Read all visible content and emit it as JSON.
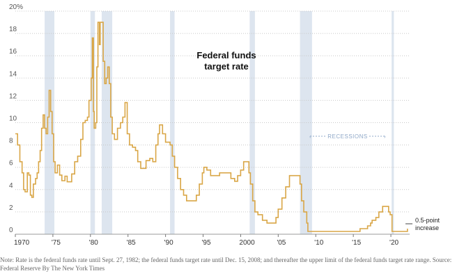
{
  "chart_data": {
    "type": "line",
    "title_lines": [
      "Federal funds",
      "target rate"
    ],
    "xlabel": "",
    "ylabel": "",
    "ylim": [
      0,
      20
    ],
    "xlim": [
      1970,
      2022.5
    ],
    "y_tick_labels": [
      "0",
      "2",
      "4",
      "6",
      "8",
      "10",
      "12",
      "14",
      "16",
      "18",
      "20%"
    ],
    "y_tick_values": [
      0,
      2,
      4,
      6,
      8,
      10,
      12,
      14,
      16,
      18,
      20
    ],
    "x_tick_labels": [
      "1970",
      "'75",
      "'80",
      "'85",
      "'90",
      "'95",
      "2000",
      "'05",
      "'10",
      "'15",
      "'20"
    ],
    "x_tick_values": [
      1970,
      1975,
      1980,
      1985,
      1990,
      1995,
      2000,
      2005,
      2010,
      2015,
      2020
    ],
    "grid": "horizontal dotted",
    "line_color": "#d9a646",
    "recession_color": "#dde5ef",
    "recessions": [
      [
        1973.9,
        1975.2
      ],
      [
        1980.0,
        1980.6
      ],
      [
        1981.5,
        1982.9
      ],
      [
        1990.6,
        1991.2
      ],
      [
        2001.2,
        2001.9
      ],
      [
        2007.9,
        2009.5
      ],
      [
        2020.1,
        2020.4
      ]
    ],
    "recessions_label": "RECESSIONS",
    "end_label_lines": [
      "0.5-point",
      "increase"
    ],
    "series": [
      {
        "points": [
          [
            1970.0,
            9.0
          ],
          [
            1970.3,
            8.0
          ],
          [
            1970.6,
            6.5
          ],
          [
            1970.9,
            5.5
          ],
          [
            1971.1,
            4.0
          ],
          [
            1971.3,
            3.8
          ],
          [
            1971.6,
            5.5
          ],
          [
            1971.8,
            5.3
          ],
          [
            1972.0,
            3.5
          ],
          [
            1972.2,
            3.3
          ],
          [
            1972.4,
            4.5
          ],
          [
            1972.7,
            5.0
          ],
          [
            1972.9,
            5.5
          ],
          [
            1973.1,
            6.5
          ],
          [
            1973.3,
            7.5
          ],
          [
            1973.5,
            9.5
          ],
          [
            1973.7,
            10.7
          ],
          [
            1973.9,
            9.5
          ],
          [
            1974.1,
            9.0
          ],
          [
            1974.3,
            10.5
          ],
          [
            1974.5,
            12.9
          ],
          [
            1974.7,
            11.0
          ],
          [
            1974.9,
            9.0
          ],
          [
            1975.1,
            6.5
          ],
          [
            1975.3,
            5.5
          ],
          [
            1975.6,
            6.2
          ],
          [
            1975.9,
            5.3
          ],
          [
            1976.2,
            4.8
          ],
          [
            1976.6,
            5.2
          ],
          [
            1976.9,
            4.7
          ],
          [
            1977.2,
            4.7
          ],
          [
            1977.5,
            5.4
          ],
          [
            1977.9,
            6.5
          ],
          [
            1978.3,
            7.0
          ],
          [
            1978.7,
            8.5
          ],
          [
            1979.0,
            10.0
          ],
          [
            1979.3,
            10.2
          ],
          [
            1979.6,
            10.5
          ],
          [
            1979.8,
            12.0
          ],
          [
            1980.1,
            14.0
          ],
          [
            1980.25,
            17.6
          ],
          [
            1980.4,
            11.0
          ],
          [
            1980.5,
            9.5
          ],
          [
            1980.7,
            10.0
          ],
          [
            1980.85,
            15.0
          ],
          [
            1981.0,
            19.0
          ],
          [
            1981.2,
            17.0
          ],
          [
            1981.3,
            19.0
          ],
          [
            1981.5,
            19.0
          ],
          [
            1981.7,
            15.5
          ],
          [
            1981.9,
            13.5
          ],
          [
            1982.1,
            14.0
          ],
          [
            1982.3,
            15.0
          ],
          [
            1982.5,
            13.5
          ],
          [
            1982.7,
            10.5
          ],
          [
            1982.9,
            9.0
          ],
          [
            1983.2,
            8.5
          ],
          [
            1983.6,
            9.5
          ],
          [
            1984.0,
            10.0
          ],
          [
            1984.3,
            10.5
          ],
          [
            1984.6,
            11.8
          ],
          [
            1984.9,
            9.0
          ],
          [
            1985.2,
            8.0
          ],
          [
            1985.6,
            7.8
          ],
          [
            1986.0,
            7.5
          ],
          [
            1986.3,
            6.5
          ],
          [
            1986.7,
            5.9
          ],
          [
            1987.0,
            5.9
          ],
          [
            1987.4,
            6.6
          ],
          [
            1987.9,
            6.8
          ],
          [
            1988.3,
            6.5
          ],
          [
            1988.7,
            8.0
          ],
          [
            1989.0,
            9.0
          ],
          [
            1989.2,
            9.8
          ],
          [
            1989.6,
            9.0
          ],
          [
            1990.0,
            8.25
          ],
          [
            1990.6,
            8.0
          ],
          [
            1990.9,
            7.0
          ],
          [
            1991.2,
            6.0
          ],
          [
            1991.6,
            5.0
          ],
          [
            1992.0,
            4.0
          ],
          [
            1992.4,
            3.5
          ],
          [
            1992.8,
            3.0
          ],
          [
            1993.5,
            3.0
          ],
          [
            1994.1,
            3.5
          ],
          [
            1994.5,
            4.5
          ],
          [
            1994.9,
            5.5
          ],
          [
            1995.1,
            6.0
          ],
          [
            1995.5,
            5.75
          ],
          [
            1996.0,
            5.25
          ],
          [
            1996.5,
            5.25
          ],
          [
            1997.2,
            5.5
          ],
          [
            1998.0,
            5.5
          ],
          [
            1998.7,
            5.0
          ],
          [
            1999.2,
            4.75
          ],
          [
            1999.6,
            5.25
          ],
          [
            2000.0,
            5.75
          ],
          [
            2000.4,
            6.5
          ],
          [
            2000.9,
            6.5
          ],
          [
            2001.1,
            5.5
          ],
          [
            2001.3,
            4.5
          ],
          [
            2001.6,
            3.0
          ],
          [
            2001.9,
            2.0
          ],
          [
            2002.3,
            1.75
          ],
          [
            2002.9,
            1.25
          ],
          [
            2003.5,
            1.0
          ],
          [
            2004.4,
            1.0
          ],
          [
            2004.7,
            1.5
          ],
          [
            2005.0,
            2.25
          ],
          [
            2005.5,
            3.25
          ],
          [
            2006.0,
            4.25
          ],
          [
            2006.5,
            5.25
          ],
          [
            2007.6,
            5.25
          ],
          [
            2007.9,
            4.5
          ],
          [
            2008.1,
            3.0
          ],
          [
            2008.4,
            2.0
          ],
          [
            2008.8,
            1.0
          ],
          [
            2008.95,
            0.25
          ],
          [
            2015.9,
            0.5
          ],
          [
            2016.9,
            0.75
          ],
          [
            2017.3,
            1.0
          ],
          [
            2017.5,
            1.25
          ],
          [
            2018.0,
            1.5
          ],
          [
            2018.4,
            2.0
          ],
          [
            2018.9,
            2.5
          ],
          [
            2019.5,
            2.5
          ],
          [
            2019.7,
            2.0
          ],
          [
            2019.9,
            1.75
          ],
          [
            2020.15,
            0.25
          ],
          [
            2022.15,
            0.25
          ],
          [
            2022.2,
            0.5
          ]
        ]
      }
    ]
  },
  "note": {
    "text": "Note: Rate is the federal funds rate until Sept. 27, 1982; the federal funds target rate until Dec. 15, 2008; and thereafter the upper limit of the federal funds target rate range.",
    "source": "Source: Federal Reserve",
    "credit": "By The New York Times"
  }
}
